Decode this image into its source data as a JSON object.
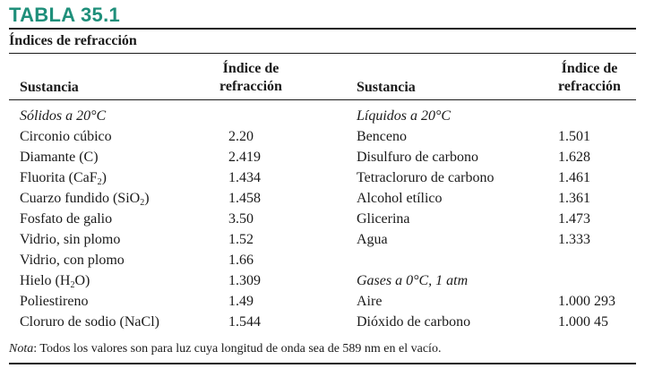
{
  "table_label": "TABLA 35.1",
  "caption": "Índices de refracción",
  "headers": {
    "substance": "Sustancia",
    "index_line1": "Índice de",
    "index_line2": "refracción"
  },
  "left_group": "Sólidos a 20°C",
  "left_rows": [
    {
      "name": "Circonio cúbico",
      "sub": "",
      "suffix": "",
      "value": "2.20"
    },
    {
      "name": "Diamante (C)",
      "sub": "",
      "suffix": "",
      "value": "2.419"
    },
    {
      "name": "Fluorita (CaF",
      "sub": "2",
      "suffix": ")",
      "value": "1.434"
    },
    {
      "name": "Cuarzo fundido (SiO",
      "sub": "2",
      "suffix": ")",
      "value": "1.458"
    },
    {
      "name": "Fosfato de galio",
      "sub": "",
      "suffix": "",
      "value": "3.50"
    },
    {
      "name": "Vidrio, sin plomo",
      "sub": "",
      "suffix": "",
      "value": "1.52"
    },
    {
      "name": "Vidrio, con plomo",
      "sub": "",
      "suffix": "",
      "value": "1.66"
    },
    {
      "name": "Hielo (H",
      "sub": "2",
      "suffix": "O)",
      "value": "1.309"
    },
    {
      "name": "Poliestireno",
      "sub": "",
      "suffix": "",
      "value": "1.49"
    },
    {
      "name": "Cloruro de sodio (NaCl)",
      "sub": "",
      "suffix": "",
      "value": "1.544"
    }
  ],
  "right_group1": "Líquidos a 20°C",
  "right_rows1": [
    {
      "name": "Benceno",
      "value": "1.501"
    },
    {
      "name": "Disulfuro de carbono",
      "value": "1.628"
    },
    {
      "name": "Tetracloruro de carbono",
      "value": "1.461"
    },
    {
      "name": "Alcohol etílico",
      "value": "1.361"
    },
    {
      "name": "Glicerina",
      "value": "1.473"
    },
    {
      "name": "Agua",
      "value": "1.333"
    }
  ],
  "right_group2": "Gases a 0°C, 1 atm",
  "right_rows2": [
    {
      "name": "Aire",
      "value": "1.000 293"
    },
    {
      "name": "Dióxido de carbono",
      "value": "1.000 45"
    }
  ],
  "note_lead": "Nota",
  "note_text": ": Todos los valores son para luz cuya longitud de onda sea de 589 nm en el vacío."
}
